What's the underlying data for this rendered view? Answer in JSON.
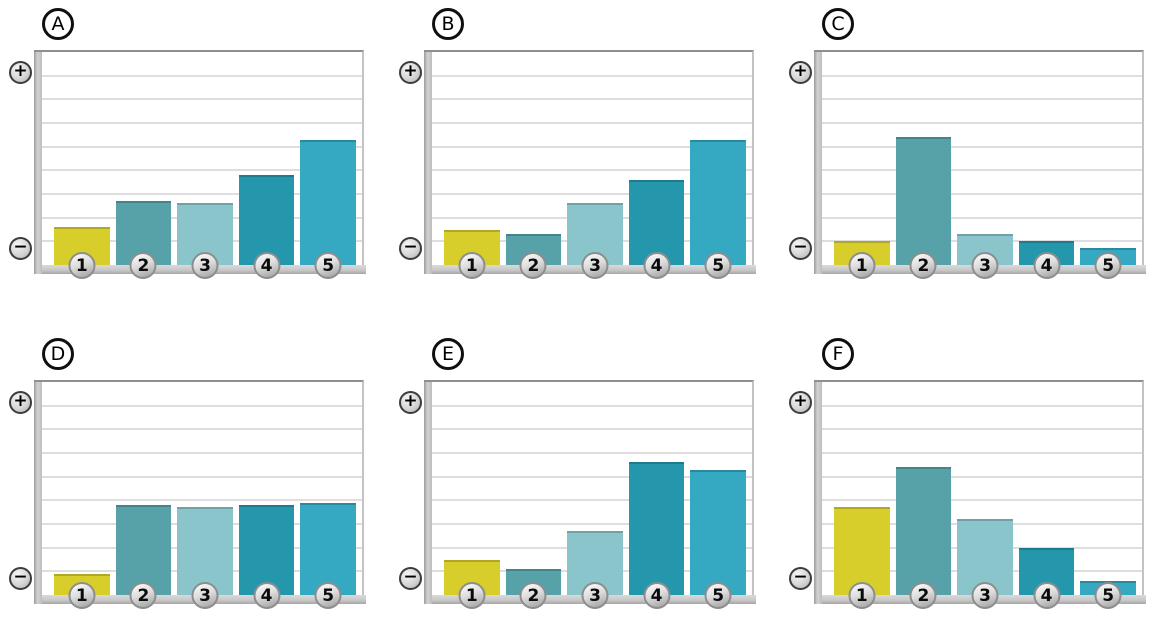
{
  "figure": {
    "description": "Six mini bar-chart panels (A-F), each with five numbered bars on an unlabeled vertical scale running from minus at the bottom to plus at the top",
    "plus_symbol": "+",
    "minus_symbol": "−",
    "gridline_count": 8
  },
  "colors": {
    "bar_colors": [
      "#d7ce2b",
      "#56a2a8",
      "#89c5cb",
      "#2497ad",
      "#35a8c2"
    ],
    "gridline": "#dedede",
    "axis_gray": "#bdbdbd",
    "plot_background": "#ffffff",
    "page_background": "#ffffff",
    "badge_border": "#8d8d8d",
    "letter_border": "#0f0f0f"
  },
  "chart_data": [
    {
      "type": "bar",
      "panel": "A",
      "categories": [
        "1",
        "2",
        "3",
        "4",
        "5"
      ],
      "values": [
        1.6,
        2.7,
        2.6,
        3.8,
        5.3
      ],
      "ylim": [
        0,
        9
      ],
      "y_axis_top_label": "+",
      "y_axis_bottom_label": "−",
      "grid": true,
      "legend": "none"
    },
    {
      "type": "bar",
      "panel": "B",
      "categories": [
        "1",
        "2",
        "3",
        "4",
        "5"
      ],
      "values": [
        1.5,
        1.3,
        2.6,
        3.6,
        5.3
      ],
      "ylim": [
        0,
        9
      ],
      "y_axis_top_label": "+",
      "y_axis_bottom_label": "−",
      "grid": true,
      "legend": "none"
    },
    {
      "type": "bar",
      "panel": "C",
      "categories": [
        "1",
        "2",
        "3",
        "4",
        "5"
      ],
      "values": [
        1.0,
        5.4,
        1.3,
        1.0,
        0.7
      ],
      "ylim": [
        0,
        9
      ],
      "y_axis_top_label": "+",
      "y_axis_bottom_label": "−",
      "grid": true,
      "legend": "none"
    },
    {
      "type": "bar",
      "panel": "D",
      "categories": [
        "1",
        "2",
        "3",
        "4",
        "5"
      ],
      "values": [
        0.9,
        3.8,
        3.7,
        3.8,
        3.9
      ],
      "ylim": [
        0,
        9
      ],
      "y_axis_top_label": "+",
      "y_axis_bottom_label": "−",
      "grid": true,
      "legend": "none"
    },
    {
      "type": "bar",
      "panel": "E",
      "categories": [
        "1",
        "2",
        "3",
        "4",
        "5"
      ],
      "values": [
        1.5,
        1.1,
        2.7,
        5.6,
        5.3
      ],
      "ylim": [
        0,
        9
      ],
      "y_axis_top_label": "+",
      "y_axis_bottom_label": "−",
      "grid": true,
      "legend": "none"
    },
    {
      "type": "bar",
      "panel": "F",
      "categories": [
        "1",
        "2",
        "3",
        "4",
        "5"
      ],
      "values": [
        3.7,
        5.4,
        3.2,
        2.0,
        0.6
      ],
      "ylim": [
        0,
        9
      ],
      "y_axis_top_label": "+",
      "y_axis_bottom_label": "−",
      "grid": true,
      "legend": "none"
    }
  ]
}
